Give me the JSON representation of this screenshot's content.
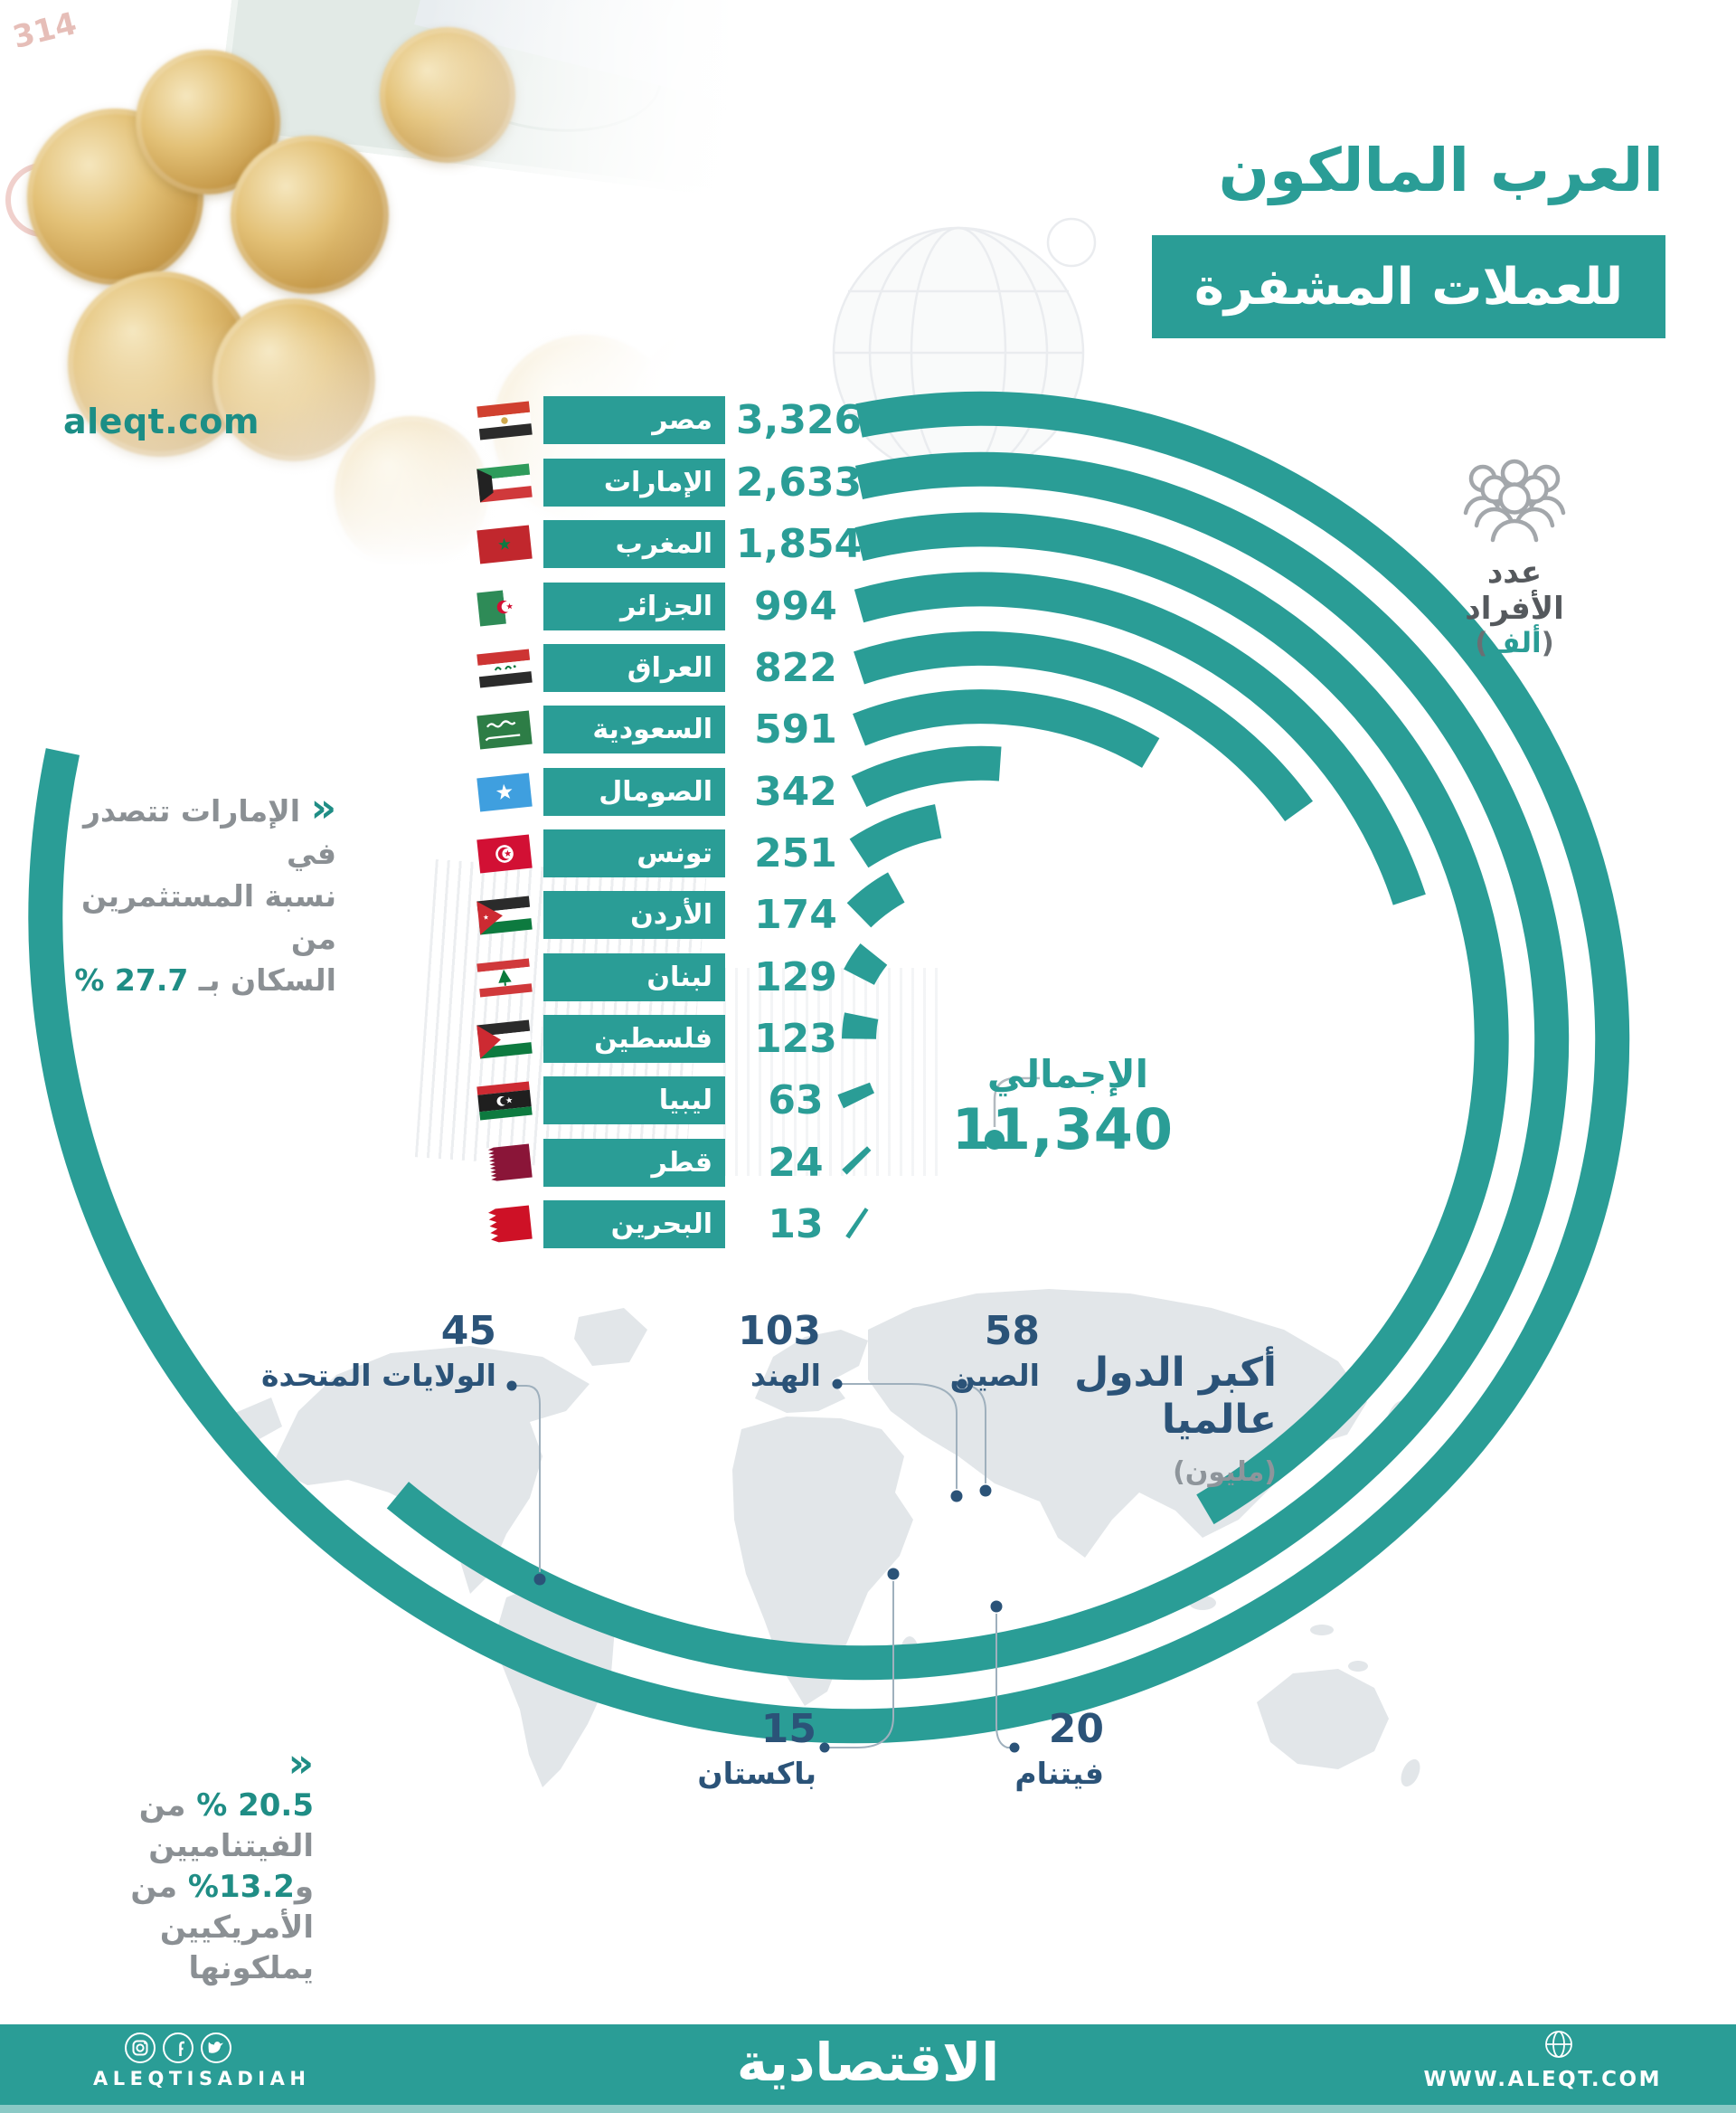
{
  "title": {
    "line1": "العرب المالكون",
    "line2": "للعملات المشفرة"
  },
  "watermark": "aleqt.com",
  "legend": {
    "title": "عدد الأفراد",
    "unit_prefix": "(",
    "unit_value": "ألف",
    "unit_suffix": ")"
  },
  "chart_data": [
    {
      "type": "radial-bar",
      "title": "العرب المالكون للعملات المشفرة",
      "unit": "عدد الأفراد (ألف)",
      "categories": [
        "مصر",
        "الإمارات",
        "المغرب",
        "الجزائر",
        "العراق",
        "السعودية",
        "الصومال",
        "تونس",
        "الأردن",
        "لبنان",
        "فلسطين",
        "ليبيا",
        "قطر",
        "البحرين"
      ],
      "values": [
        3326,
        2633,
        1854,
        994,
        822,
        591,
        342,
        251,
        174,
        129,
        123,
        63,
        24,
        13
      ],
      "value_labels": [
        "3,326",
        "2,633",
        "1,854",
        "994",
        "822",
        "591",
        "342",
        "251",
        "174",
        "129",
        "123",
        "63",
        "24",
        "13"
      ],
      "total": {
        "label": "الإجمالي",
        "value": 11340,
        "value_label": "11,340"
      },
      "accent": "#2a9d96"
    },
    {
      "type": "map-callout",
      "title": "أكبر الدول عالميا",
      "unit": "(مليون)",
      "categories": [
        "الولايات المتحدة",
        "الهند",
        "الصين",
        "باكستان",
        "فيتنام"
      ],
      "values": [
        45,
        103,
        58,
        15,
        20
      ],
      "value_labels": [
        "45",
        "103",
        "58",
        "15",
        "20"
      ]
    }
  ],
  "map_title": {
    "line1": "أكبر الدول",
    "line2": "عالميا",
    "unit": "(مليون)"
  },
  "note_uae": {
    "marker": "«",
    "line1": "الإمارات تتصدر في",
    "line2": "نسبة المستثمرين من",
    "line3_prefix": "السكان بـ ",
    "line3_accent": "27.7 %"
  },
  "note_world": {
    "marker": "«",
    "l1_accent": "20.5 %",
    "l1_rest": " من الفيتناميين",
    "l2_prefix": "و",
    "l2_accent": "13.2%",
    "l2_rest": " من الأمريكيين",
    "l3": "يملكونها"
  },
  "footer": {
    "brand_latin": "ALEQTISADIAH",
    "brand_arabic": "الاقتصادية",
    "website": "WWW.ALEQT.COM"
  },
  "colors": {
    "accent": "#2a9d96",
    "navy": "#2b5378",
    "gray_text": "#8b9094",
    "map_fill": "#e2e6e9"
  }
}
